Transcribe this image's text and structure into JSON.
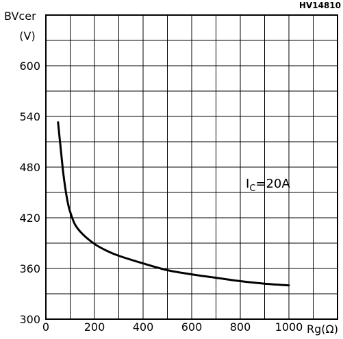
{
  "chart_data": {
    "type": "line",
    "title": "",
    "figure_code": "HV14810",
    "xlabel": "Rg(Ω)",
    "ylabel_line1": "BVcer",
    "ylabel_line2": "(V)",
    "xlim": [
      0,
      1200
    ],
    "ylim": [
      300,
      660
    ],
    "xticks": [
      0,
      200,
      400,
      600,
      800,
      1000
    ],
    "xtick_labels": [
      "0",
      "200",
      "400",
      "600",
      "800",
      "1000"
    ],
    "yticks": [
      300,
      360,
      420,
      480,
      540,
      600
    ],
    "ytick_labels": [
      "300",
      "360",
      "420",
      "480",
      "540",
      "600"
    ],
    "grid": true,
    "x_grid_step": 100,
    "y_grid_step": 30,
    "annotation": {
      "main": "I",
      "sub": "C",
      "rest": "=20A"
    },
    "series": [
      {
        "values": [
          [
            50,
            533
          ],
          [
            60,
            505
          ],
          [
            70,
            477
          ],
          [
            80,
            455
          ],
          [
            90,
            438
          ],
          [
            100,
            427
          ],
          [
            120,
            412
          ],
          [
            150,
            401
          ],
          [
            200,
            389
          ],
          [
            250,
            381
          ],
          [
            300,
            375
          ],
          [
            400,
            366
          ],
          [
            500,
            358
          ],
          [
            600,
            353
          ],
          [
            700,
            349
          ],
          [
            800,
            345
          ],
          [
            900,
            342
          ],
          [
            1000,
            340
          ]
        ]
      }
    ]
  }
}
